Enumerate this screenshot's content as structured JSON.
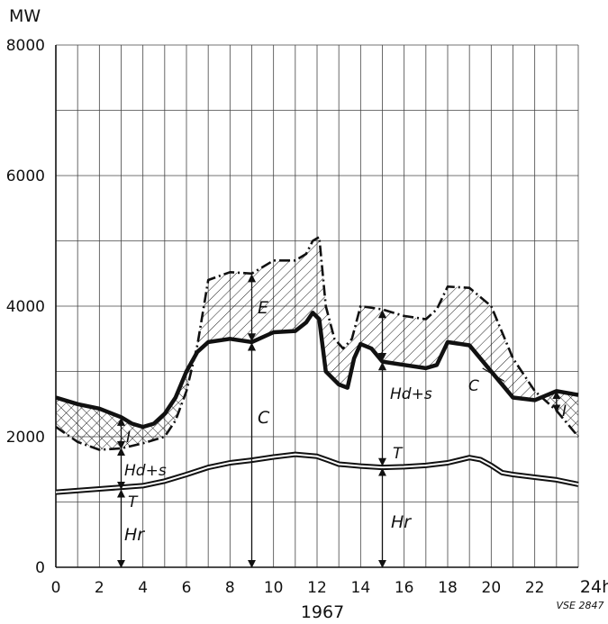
{
  "chart_data": {
    "type": "area",
    "ylabel": "MW",
    "xlabel": "1967",
    "x_end_label": "24h",
    "source_label": "VSE 2847",
    "xlim": [
      0,
      24
    ],
    "ylim": [
      0,
      8000
    ],
    "x_ticks": [
      0,
      2,
      4,
      6,
      8,
      10,
      12,
      14,
      16,
      18,
      20,
      22
    ],
    "y_ticks": [
      0,
      2000,
      4000,
      6000,
      8000
    ],
    "grid": true,
    "series": [
      {
        "name": "Hr",
        "style": "double-line",
        "x": [
          0,
          2,
          4,
          5,
          6,
          7,
          8,
          9,
          10,
          11,
          12,
          12.5,
          13,
          14,
          15,
          16,
          17,
          18,
          19,
          19.5,
          20,
          20.5,
          21,
          22,
          23,
          24
        ],
        "values": [
          1150,
          1200,
          1250,
          1320,
          1420,
          1530,
          1600,
          1640,
          1690,
          1730,
          1700,
          1640,
          1580,
          1550,
          1530,
          1540,
          1560,
          1600,
          1680,
          1650,
          1560,
          1450,
          1420,
          1380,
          1340,
          1270
        ]
      },
      {
        "name": "C",
        "style": "bold-line",
        "x": [
          0,
          1,
          2,
          3,
          3.5,
          4,
          4.5,
          5,
          5.5,
          6,
          6.5,
          7,
          8,
          9,
          10,
          11,
          11.5,
          11.8,
          12.1,
          12.4,
          13,
          13.4,
          13.7,
          14,
          14.5,
          15,
          16,
          17,
          17.5,
          18,
          19,
          20,
          21,
          22,
          23,
          24
        ],
        "values": [
          2600,
          2500,
          2430,
          2300,
          2200,
          2150,
          2200,
          2350,
          2600,
          3000,
          3300,
          3450,
          3500,
          3450,
          3600,
          3620,
          3750,
          3900,
          3800,
          3000,
          2800,
          2750,
          3200,
          3420,
          3350,
          3150,
          3100,
          3050,
          3100,
          3450,
          3400,
          3000,
          2600,
          2560,
          2700,
          2640
        ]
      },
      {
        "name": "E",
        "style": "dash-dot-line",
        "x": [
          0,
          1,
          2,
          3,
          4,
          5,
          5.5,
          6,
          6.5,
          7,
          8,
          9,
          10,
          11,
          11.5,
          11.8,
          12.1,
          12.4,
          12.8,
          13.2,
          13.6,
          14,
          15,
          16,
          17,
          17.5,
          18,
          19,
          20,
          21,
          22,
          23,
          24
        ],
        "values": [
          2150,
          1920,
          1800,
          1820,
          1900,
          2000,
          2250,
          2700,
          3400,
          4400,
          4520,
          4500,
          4700,
          4700,
          4800,
          5000,
          5060,
          4000,
          3500,
          3350,
          3500,
          4000,
          3950,
          3850,
          3800,
          3950,
          4300,
          4280,
          4000,
          3200,
          2700,
          2400,
          2000
        ]
      }
    ],
    "annotations": {
      "E": "E",
      "C_upper": "C",
      "C_lower": "C",
      "Hd_s_left": "Hd+s",
      "Hd_s_right": "Hd+s",
      "T_left": "T",
      "T_right": "T",
      "I_left": "I",
      "I_right": "I",
      "Hr_left": "Hr",
      "Hr_right": "Hr"
    }
  }
}
